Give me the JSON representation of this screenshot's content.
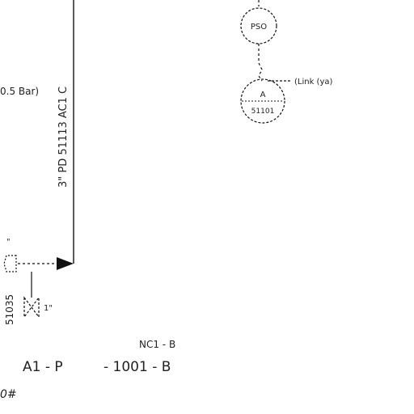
{
  "labels": {
    "vertical_line_text": "3\" PD 51113 AC1 C",
    "pressure_note": "0.5 Bar)",
    "pso_tag": "PSO",
    "instrument_tag_top": "A",
    "instrument_tag_bottom": "51101",
    "signal_note": "(Link (ya)",
    "left_vertical_number": "51035",
    "left_small_mark": "\"",
    "valve_tag": "1\"",
    "bottom_ref_upper": "NC1 - B",
    "bottom_ref_lower_left": "A1 - P",
    "bottom_ref_lower_right": "- 1001 - B",
    "bottom_left_fragment": "0#"
  },
  "colors": {
    "line": "#111111",
    "text": "#222222"
  }
}
